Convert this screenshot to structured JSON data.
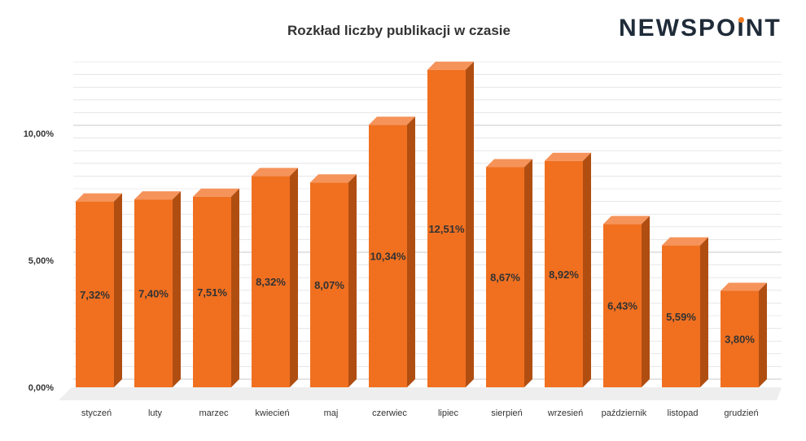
{
  "brand": {
    "logo_text": "NEWSPOINT",
    "logo_accent_color": "#f07b1f",
    "logo_color": "#1f2b38"
  },
  "chart_data": {
    "type": "bar",
    "title": "Rozkład liczby publikacji w czasie",
    "categories": [
      "styczeń",
      "luty",
      "marzec",
      "kwiecień",
      "maj",
      "czerwiec",
      "lipiec",
      "sierpień",
      "wrzesień",
      "październik",
      "listopad",
      "grudzień"
    ],
    "values": [
      7.32,
      7.4,
      7.51,
      8.32,
      8.07,
      10.34,
      12.51,
      8.67,
      8.92,
      6.43,
      5.59,
      3.8
    ],
    "data_labels": [
      "7,32%",
      "7,40%",
      "7,51%",
      "8,32%",
      "8,07%",
      "10,34%",
      "12,51%",
      "8,67%",
      "8,92%",
      "6,43%",
      "5,59%",
      "3,80%"
    ],
    "y_ticks": [
      0,
      5,
      10
    ],
    "y_tick_labels": [
      "0,00%",
      "5,00%",
      "10,00%"
    ],
    "ylim": [
      0,
      12.5
    ],
    "xlabel": "",
    "ylabel": "",
    "grid": true,
    "legend": "none",
    "style": "3d-columns",
    "colors": {
      "front": "#f07020",
      "top": "#f5935a",
      "side": "#b04e12",
      "grid": "#d9d9d9",
      "floor": "#eeeeee"
    }
  }
}
